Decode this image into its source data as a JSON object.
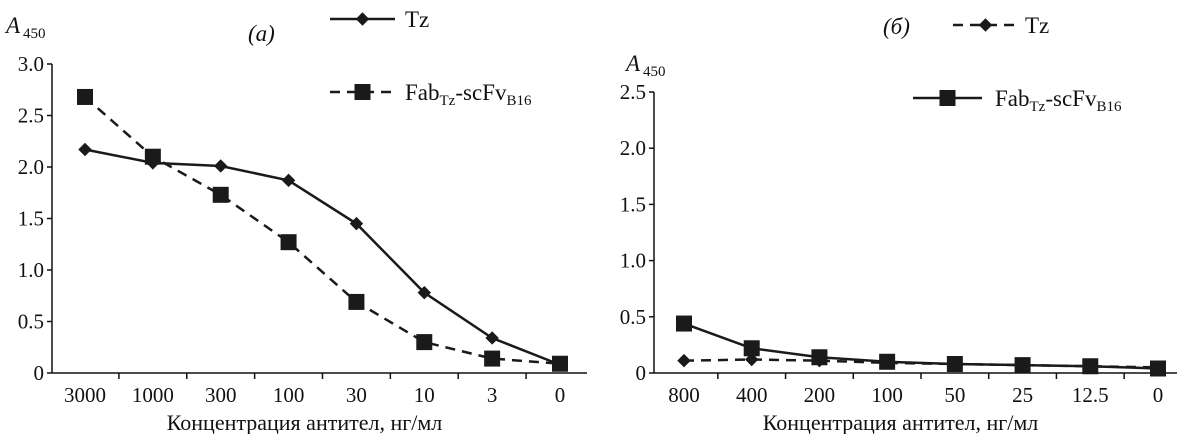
{
  "chart_data": [
    {
      "type": "line",
      "panel_label": "(а)",
      "ylabel": "A",
      "ylabel_sub": "450",
      "xlabel": "Концентрация антител, нг/мл",
      "categories": [
        "3000",
        "1000",
        "300",
        "100",
        "30",
        "10",
        "3",
        "0"
      ],
      "ylim": [
        0,
        3.0
      ],
      "yticks": [
        "0",
        "0.5",
        "1.0",
        "1.5",
        "2.0",
        "2.5",
        "3.0"
      ],
      "grid": false,
      "series": [
        {
          "name": "Tz",
          "name_main": "Tz",
          "name_sub": "",
          "name_mid": "",
          "name_sub2": "",
          "line": "solid",
          "marker": "diamond",
          "color": "#1a1a1a",
          "values": [
            2.17,
            2.04,
            2.01,
            1.87,
            1.45,
            0.78,
            0.34,
            0.08
          ]
        },
        {
          "name": "FabTz-scFvB16",
          "name_main": "Fab",
          "name_sub": "Tz",
          "name_mid": "-scFv",
          "name_sub2": "B16",
          "line": "dashed",
          "marker": "square",
          "color": "#1a1a1a",
          "values": [
            2.68,
            2.1,
            1.73,
            1.27,
            0.69,
            0.3,
            0.14,
            0.09
          ]
        }
      ]
    },
    {
      "type": "line",
      "panel_label": "(б)",
      "ylabel": "A",
      "ylabel_sub": "450",
      "xlabel": "Концентрация антител, нг/мл",
      "categories": [
        "800",
        "400",
        "200",
        "100",
        "50",
        "25",
        "12.5",
        "0"
      ],
      "ylim": [
        0,
        2.5
      ],
      "yticks": [
        "0",
        "0.5",
        "1.0",
        "1.5",
        "2.0",
        "2.5"
      ],
      "grid": false,
      "series": [
        {
          "name": "Tz",
          "name_main": "Tz",
          "name_sub": "",
          "name_mid": "",
          "name_sub2": "",
          "line": "dashed",
          "marker": "diamond",
          "color": "#1a1a1a",
          "values": [
            0.11,
            0.12,
            0.11,
            0.09,
            0.08,
            0.07,
            0.06,
            0.05
          ]
        },
        {
          "name": "FabTz-scFvB16",
          "name_main": "Fab",
          "name_sub": "Tz",
          "name_mid": "-scFv",
          "name_sub2": "B16",
          "line": "solid",
          "marker": "square",
          "color": "#1a1a1a",
          "values": [
            0.44,
            0.22,
            0.14,
            0.1,
            0.08,
            0.07,
            0.06,
            0.04
          ]
        }
      ]
    }
  ]
}
